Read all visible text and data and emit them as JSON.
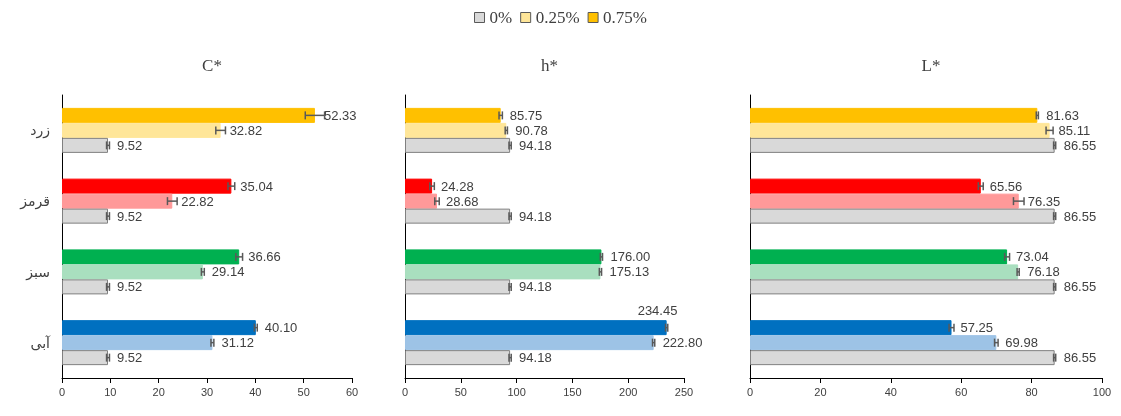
{
  "chart_data": [
    {
      "type": "bar",
      "orientation": "horizontal",
      "title": "C*",
      "categories": [
        "زرد",
        "قرمز",
        "سبز",
        "آبی"
      ],
      "xlim": [
        0,
        60
      ],
      "xticks": [
        0,
        10,
        20,
        30,
        40,
        50,
        60
      ],
      "grid": false,
      "legend": "top",
      "series": [
        {
          "name": "0%",
          "color": "#d9d9d9",
          "colors": [
            "#d9d9d9",
            "#d9d9d9",
            "#d9d9d9",
            "#d9d9d9"
          ],
          "values": [
            9.52,
            9.52,
            9.52,
            9.52
          ],
          "value_labels": [
            "9.52",
            "9.52",
            "9.52",
            "9.52"
          ],
          "errors": [
            0.3,
            0.3,
            0.3,
            0.3
          ]
        },
        {
          "name": "0.25%",
          "color": "#ffe699",
          "colors": [
            "#ffe699",
            "#ff9999",
            "#a9dfbf",
            "#9dc3e6"
          ],
          "values": [
            32.82,
            22.82,
            29.14,
            31.12
          ],
          "value_labels": [
            "32.82",
            "22.82",
            "29.14",
            "31.12"
          ],
          "errors": [
            1,
            1,
            0.3,
            0.3
          ]
        },
        {
          "name": "0.75%",
          "color": "#ffc000",
          "colors": [
            "#ffc000",
            "#ff0000",
            "#00b050",
            "#0070c0"
          ],
          "values": [
            52.33,
            35.04,
            36.66,
            40.1
          ],
          "value_labels": [
            "52.33",
            "35.04",
            "36.66",
            "40.10"
          ],
          "errors": [
            2,
            0.7,
            0.7,
            0.3
          ]
        }
      ]
    },
    {
      "type": "bar",
      "orientation": "horizontal",
      "title": "h*",
      "categories": [
        null,
        null,
        null,
        null
      ],
      "xlim": [
        0,
        250
      ],
      "xticks": [
        0,
        50,
        100,
        150,
        200,
        250
      ],
      "grid": false,
      "tick_labels": "x",
      "series": [
        {
          "colors": [
            "#d9d9d9",
            "#d9d9d9",
            "#d9d9d9",
            "#d9d9d9"
          ],
          "values": [
            94.18,
            94.18,
            94.18,
            94.18
          ],
          "value_labels": [
            "94.18",
            "94.18",
            "94.18",
            "94.18"
          ],
          "errors": [
            1,
            1,
            1,
            1
          ]
        },
        {
          "colors": [
            "#ffe699",
            "#ff9999",
            "#a9dfbf",
            "#9dc3e6"
          ],
          "values": [
            90.78,
            28.68,
            175.13,
            222.8
          ],
          "value_labels": [
            "90.78",
            "28.68",
            "175.13",
            "222.80"
          ],
          "errors": [
            1,
            2,
            1,
            1
          ]
        },
        {
          "colors": [
            "#ffc000",
            "#ff0000",
            "#00b050",
            "#0070c0"
          ],
          "values": [
            85.75,
            24.28,
            176,
            234.45
          ],
          "value_labels": [
            "85.75",
            "24.28",
            "176.00",
            "234.45"
          ],
          "errors": [
            1.5,
            2,
            1,
            1
          ]
        }
      ]
    },
    {
      "type": "bar",
      "orientation": "horizontal",
      "title": "L*",
      "categories": [
        null,
        null,
        null,
        null
      ],
      "xlim": [
        0,
        100
      ],
      "xticks": [
        0,
        20,
        40,
        60,
        80,
        100
      ],
      "grid": false,
      "tick_labels": "x",
      "series": [
        {
          "colors": [
            "#d9d9d9",
            "#d9d9d9",
            "#d9d9d9",
            "#d9d9d9"
          ],
          "values": [
            86.55,
            86.55,
            86.55,
            86.55
          ],
          "value_labels": [
            "86.55",
            "86.55",
            "86.55",
            "86.55"
          ],
          "errors": [
            0.3,
            0.3,
            0.3,
            0.3
          ]
        },
        {
          "colors": [
            "#ffe699",
            "#ff9999",
            "#a9dfbf",
            "#9dc3e6"
          ],
          "values": [
            85.11,
            76.35,
            76.18,
            69.98
          ],
          "value_labels": [
            "85.11",
            "76.35",
            "76.18",
            "69.98"
          ],
          "errors": [
            1,
            1.5,
            0.3,
            0.5
          ]
        },
        {
          "colors": [
            "#ffc000",
            "#ff0000",
            "#00b050",
            "#0070c0"
          ],
          "values": [
            81.63,
            65.56,
            73.04,
            57.25
          ],
          "value_labels": [
            "81.63",
            "65.56",
            "73.04",
            "57.25"
          ],
          "errors": [
            0.3,
            0.7,
            0.7,
            0.7
          ]
        }
      ]
    }
  ]
}
